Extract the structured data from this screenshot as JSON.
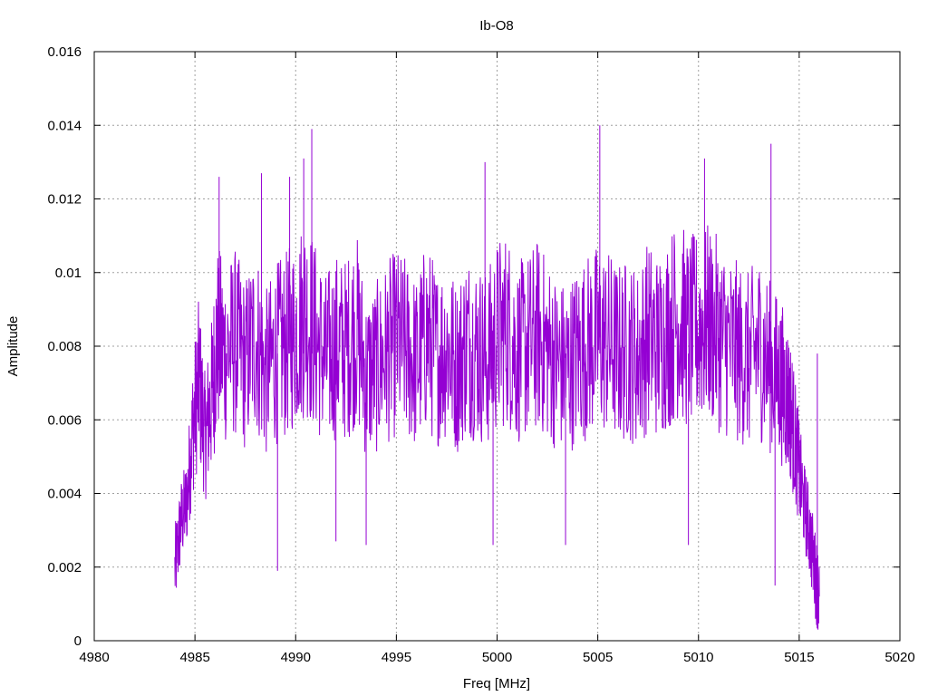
{
  "chart_data": {
    "type": "line",
    "title": "Ib-O8",
    "xlabel": "Freq [MHz]",
    "ylabel": "Amplitude",
    "xlim": [
      4980,
      5020
    ],
    "ylim": [
      0,
      0.016
    ],
    "xticks": [
      4980,
      4985,
      4990,
      4995,
      5000,
      5005,
      5010,
      5015,
      5020
    ],
    "yticks": [
      0,
      0.002,
      0.004,
      0.006,
      0.008,
      0.01,
      0.012,
      0.014,
      0.016
    ],
    "xtick_labels": [
      "4980",
      "4985",
      "4990",
      "4995",
      "5000",
      "5005",
      "5010",
      "5015",
      "5020"
    ],
    "ytick_labels": [
      "0",
      "0.002",
      "0.004",
      "0.006",
      "0.008",
      "0.01",
      "0.012",
      "0.014",
      "0.016"
    ],
    "grid": true,
    "series_color": "#9400d3",
    "series": [
      {
        "name": "",
        "x": [
          4984.0,
          4984.3,
          4984.6,
          4984.9,
          4985.2,
          4985.5,
          4985.8,
          4986.1,
          4986.5,
          4987.0,
          4987.5,
          4988.0,
          4988.5,
          4989.0,
          4989.5,
          4990.0,
          4990.5,
          4991.0,
          4991.5,
          4992.0,
          4992.5,
          4993.0,
          4993.5,
          4994.0,
          4994.5,
          4995.0,
          4995.5,
          4996.0,
          4996.5,
          4997.0,
          4997.5,
          4998.0,
          4998.5,
          4999.0,
          4999.5,
          5000.0,
          5000.5,
          5001.0,
          5001.5,
          5002.0,
          5002.5,
          5003.0,
          5003.5,
          5004.0,
          5004.5,
          5005.0,
          5005.5,
          5006.0,
          5006.5,
          5007.0,
          5007.5,
          5008.0,
          5008.5,
          5009.0,
          5009.5,
          5010.0,
          5010.5,
          5011.0,
          5011.5,
          5012.0,
          5012.5,
          5013.0,
          5013.5,
          5014.0,
          5014.3,
          5014.6,
          5014.9,
          5015.2,
          5015.5,
          5015.8,
          5016.0
        ],
        "values": [
          0.0019,
          0.0032,
          0.0038,
          0.0058,
          0.0071,
          0.0055,
          0.0065,
          0.0082,
          0.0078,
          0.0081,
          0.0075,
          0.0083,
          0.0072,
          0.0078,
          0.008,
          0.0084,
          0.0089,
          0.0082,
          0.0076,
          0.008,
          0.0079,
          0.0085,
          0.0072,
          0.0074,
          0.0078,
          0.0081,
          0.0079,
          0.0075,
          0.0083,
          0.0077,
          0.008,
          0.0074,
          0.0081,
          0.0079,
          0.0076,
          0.0083,
          0.0085,
          0.0078,
          0.008,
          0.0083,
          0.0079,
          0.0075,
          0.0074,
          0.0078,
          0.008,
          0.0082,
          0.0081,
          0.0078,
          0.0079,
          0.0077,
          0.0083,
          0.008,
          0.0084,
          0.0088,
          0.0083,
          0.0085,
          0.0086,
          0.0083,
          0.008,
          0.0078,
          0.0076,
          0.008,
          0.0075,
          0.0071,
          0.0068,
          0.0062,
          0.005,
          0.0038,
          0.003,
          0.0018,
          0.0012
        ]
      }
    ],
    "spikes": [
      {
        "x": 4986.2,
        "value": 0.0126
      },
      {
        "x": 4988.3,
        "value": 0.0127
      },
      {
        "x": 4989.1,
        "value": 0.0019
      },
      {
        "x": 4989.7,
        "value": 0.0126
      },
      {
        "x": 4990.4,
        "value": 0.0131
      },
      {
        "x": 4990.8,
        "value": 0.0139
      },
      {
        "x": 4992.0,
        "value": 0.0027
      },
      {
        "x": 4993.5,
        "value": 0.0026
      },
      {
        "x": 4999.4,
        "value": 0.013
      },
      {
        "x": 4999.8,
        "value": 0.0026
      },
      {
        "x": 5003.4,
        "value": 0.0026
      },
      {
        "x": 5005.1,
        "value": 0.014
      },
      {
        "x": 5009.5,
        "value": 0.0026
      },
      {
        "x": 5010.3,
        "value": 0.0131
      },
      {
        "x": 5013.6,
        "value": 0.0135
      },
      {
        "x": 5013.8,
        "value": 0.0015
      },
      {
        "x": 5015.9,
        "value": 0.0004
      }
    ]
  }
}
